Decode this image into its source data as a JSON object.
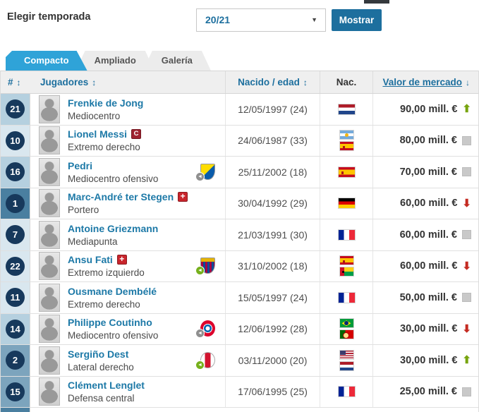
{
  "season_bar": {
    "label": "Elegir temporada",
    "selected_season": "20/21",
    "show_button": "Mostrar"
  },
  "tabs": [
    {
      "label": "Compacto",
      "active": true
    },
    {
      "label": "Ampliado",
      "active": false
    },
    {
      "label": "Galería",
      "active": false
    }
  ],
  "icons": {
    "dropdown_caret": "▼",
    "sort": "↕",
    "sort_desc": "↓",
    "trend_up": "⬆",
    "trend_down": "⬇",
    "transfer_in": "◄"
  },
  "table": {
    "headers": {
      "number": "#",
      "players": "Jugadores",
      "born_age": "Nacido / edad",
      "nationality": "Nac.",
      "market_value": "Valor de mercado"
    },
    "rows": [
      {
        "number": "21",
        "position_group": "midfielder",
        "name": "Frenkie de Jong",
        "position": "Mediocentro",
        "born": "12/05/1997 (24)",
        "nationalities": [
          "nl"
        ],
        "value": "90,00 mill. €",
        "trend": "up"
      },
      {
        "number": "10",
        "position_group": "forward",
        "name": "Lionel Messi",
        "badge": {
          "type": "captain",
          "label": "C"
        },
        "position": "Extremo derecho",
        "born": "24/06/1987 (33)",
        "nationalities": [
          "ar",
          "es"
        ],
        "value": "80,00 mill. €",
        "trend": "same"
      },
      {
        "number": "16",
        "position_group": "midfielder",
        "name": "Pedri",
        "position": "Mediocentro ofensivo",
        "transfer": {
          "club": "las-palmas",
          "arrow": "gray"
        },
        "born": "25/11/2002 (18)",
        "nationalities": [
          "es"
        ],
        "value": "70,00 mill. €",
        "trend": "same"
      },
      {
        "number": "1",
        "position_group": "goalkeeper",
        "name": "Marc-André ter Stegen",
        "badge": {
          "type": "injury",
          "label": "+"
        },
        "position": "Portero",
        "born": "30/04/1992 (29)",
        "nationalities": [
          "de"
        ],
        "value": "60,00 mill. €",
        "trend": "down"
      },
      {
        "number": "7",
        "position_group": "forward",
        "name": "Antoine Griezmann",
        "position": "Mediapunta",
        "born": "21/03/1991 (30)",
        "nationalities": [
          "fr"
        ],
        "value": "60,00 mill. €",
        "trend": "same"
      },
      {
        "number": "22",
        "position_group": "forward",
        "name": "Ansu Fati",
        "badge": {
          "type": "injury",
          "label": "+"
        },
        "position": "Extremo izquierdo",
        "transfer": {
          "club": "barcelona",
          "arrow": "green"
        },
        "born": "31/10/2002 (18)",
        "nationalities": [
          "es",
          "gw"
        ],
        "value": "60,00 mill. €",
        "trend": "down"
      },
      {
        "number": "11",
        "position_group": "forward",
        "name": "Ousmane Dembélé",
        "position": "Extremo derecho",
        "born": "15/05/1997 (24)",
        "nationalities": [
          "fr"
        ],
        "value": "50,00 mill. €",
        "trend": "same"
      },
      {
        "number": "14",
        "position_group": "midfielder",
        "name": "Philippe Coutinho",
        "position": "Mediocentro ofensivo",
        "transfer": {
          "club": "bayern",
          "arrow": "gray"
        },
        "born": "12/06/1992 (28)",
        "nationalities": [
          "br",
          "pt"
        ],
        "value": "30,00 mill. €",
        "trend": "down"
      },
      {
        "number": "2",
        "position_group": "defender",
        "name": "Sergiño Dest",
        "position": "Lateral derecho",
        "transfer": {
          "club": "ajax",
          "arrow": "green"
        },
        "born": "03/11/2000 (20)",
        "nationalities": [
          "us",
          "nl"
        ],
        "value": "30,00 mill. €",
        "trend": "up"
      },
      {
        "number": "15",
        "position_group": "defender",
        "name": "Clément Lenglet",
        "position": "Defensa central",
        "born": "17/06/1995 (25)",
        "nationalities": [
          "fr"
        ],
        "value": "25,00 mill. €",
        "trend": "same"
      }
    ],
    "partial_row": {
      "position_group": "goalkeeper"
    }
  },
  "colors": {
    "accent_tab_blue": "#2fa3d8",
    "link_blue": "#1d6f9e",
    "button_blue": "#1d6f9e",
    "number_circle_navy": "#17395c",
    "goalkeeper_cell": "#4a7fa0",
    "defender_cell": "#7ca4bd",
    "midfielder_cell": "#b5d0df",
    "forward_cell": "#d9e7ef",
    "value_up_green": "#77a40e",
    "value_down_red": "#c42a21",
    "value_same_gray": "#c9c9c9"
  }
}
